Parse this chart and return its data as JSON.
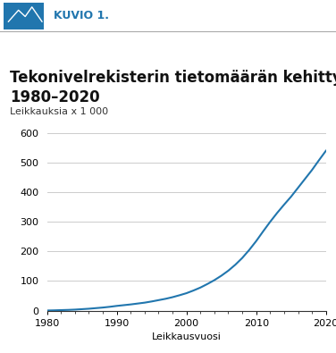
{
  "title_line1": "Tekonivelrekisterin tietomäärän kehittyminen",
  "title_line2": "1980–2020",
  "ylabel": "Leikkauksia x 1 000",
  "xlabel": "Leikkausvuosi",
  "header_text": "KUVIO 1.",
  "header_bg": "#2176ae",
  "line_color": "#2176ae",
  "grid_color": "#cccccc",
  "bg_color": "#ffffff",
  "xlim": [
    1980,
    2020
  ],
  "ylim": [
    0,
    620
  ],
  "yticks": [
    0,
    100,
    200,
    300,
    400,
    500,
    600
  ],
  "xticks": [
    1980,
    1990,
    2000,
    2010,
    2020
  ],
  "x_data": [
    1980,
    1981,
    1982,
    1983,
    1984,
    1985,
    1986,
    1987,
    1988,
    1989,
    1990,
    1991,
    1992,
    1993,
    1994,
    1995,
    1996,
    1997,
    1998,
    1999,
    2000,
    2001,
    2002,
    2003,
    2004,
    2005,
    2006,
    2007,
    2008,
    2009,
    2010,
    2011,
    2012,
    2013,
    2014,
    2015,
    2016,
    2017,
    2018,
    2019,
    2020
  ],
  "y_data": [
    0.5,
    1.0,
    1.8,
    2.5,
    3.5,
    5.0,
    6.5,
    8.5,
    10.5,
    13.0,
    16.0,
    18.5,
    21.0,
    24.0,
    27.0,
    31.0,
    35.5,
    40.0,
    45.5,
    52.0,
    59.0,
    68.0,
    78.0,
    90.0,
    103.0,
    118.0,
    135.0,
    155.0,
    178.0,
    205.0,
    235.0,
    268.0,
    300.0,
    330.0,
    358.0,
    385.0,
    415.0,
    445.0,
    475.0,
    508.0,
    540.0
  ],
  "title_fontsize": 12,
  "axis_label_fontsize": 8,
  "tick_fontsize": 8,
  "header_fontsize": 9
}
